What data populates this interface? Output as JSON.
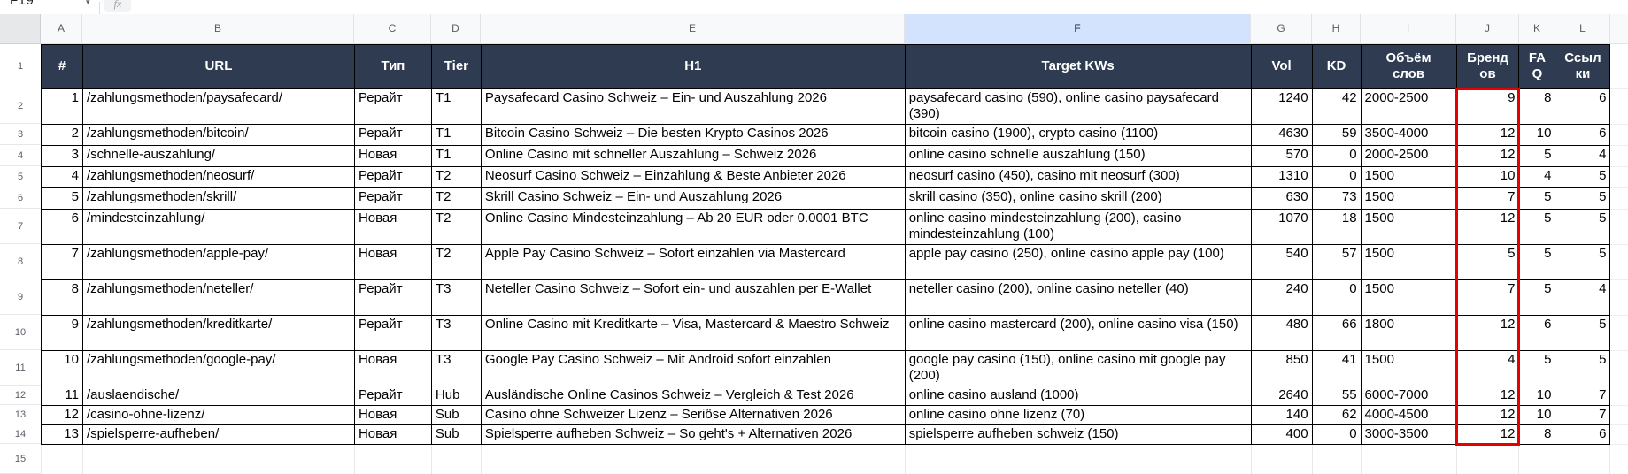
{
  "formula_bar": {
    "cell_reference": "F19",
    "fx_label": "fx"
  },
  "selected_column": "F",
  "column_letters": [
    "A",
    "B",
    "C",
    "D",
    "E",
    "F",
    "G",
    "H",
    "I",
    "J",
    "K",
    "L"
  ],
  "row_numbers": [
    "1",
    "2",
    "3",
    "4",
    "5",
    "6",
    "7",
    "8",
    "9",
    "10",
    "11",
    "12",
    "13",
    "14",
    "15"
  ],
  "table": {
    "headers": [
      "#",
      "URL",
      "Тип",
      "Tier",
      "H1",
      "Target KWs",
      "Vol",
      "KD",
      "Объём слов",
      "Брендов",
      "FAQ",
      "Ссылки"
    ],
    "rows": [
      [
        "1",
        "/zahlungsmethoden/paysafecard/",
        "Рерайт",
        "T1",
        "Paysafecard Casino Schweiz – Ein- und Auszahlung 2026",
        "paysafecard casino (590), online casino paysafecard (390)",
        "1240",
        "42",
        "2000-2500",
        "9",
        "8",
        "6"
      ],
      [
        "2",
        "/zahlungsmethoden/bitcoin/",
        "Рерайт",
        "T1",
        "Bitcoin Casino Schweiz – Die besten Krypto Casinos 2026",
        "bitcoin casino (1900), crypto casino (1100)",
        "4630",
        "59",
        "3500-4000",
        "12",
        "10",
        "6"
      ],
      [
        "3",
        "/schnelle-auszahlung/",
        "Новая",
        "T1",
        "Online Casino mit schneller Auszahlung – Schweiz 2026",
        "online casino schnelle auszahlung (150)",
        "570",
        "0",
        "2000-2500",
        "12",
        "5",
        "4"
      ],
      [
        "4",
        "/zahlungsmethoden/neosurf/",
        "Рерайт",
        "T2",
        "Neosurf Casino Schweiz – Einzahlung & Beste Anbieter 2026",
        "neosurf casino (450), casino mit neosurf (300)",
        "1310",
        "0",
        "1500",
        "10",
        "4",
        "5"
      ],
      [
        "5",
        "/zahlungsmethoden/skrill/",
        "Рерайт",
        "T2",
        "Skrill Casino Schweiz – Ein- und Auszahlung 2026",
        "skrill casino (350), online casino skrill (200)",
        "630",
        "73",
        "1500",
        "7",
        "5",
        "5"
      ],
      [
        "6",
        "/mindesteinzahlung/",
        "Новая",
        "T2",
        "Online Casino Mindesteinzahlung – Ab 20 EUR oder 0.0001 BTC",
        "online casino mindesteinzahlung (200), casino mindesteinzahlung (100)",
        "1070",
        "18",
        "1500",
        "12",
        "5",
        "5"
      ],
      [
        "7",
        "/zahlungsmethoden/apple-pay/",
        "Новая",
        "T2",
        "Apple Pay Casino Schweiz – Sofort einzahlen via Mastercard",
        "apple pay casino (250), online casino apple pay (100)",
        "540",
        "57",
        "1500",
        "5",
        "5",
        "5"
      ],
      [
        "8",
        "/zahlungsmethoden/neteller/",
        "Рерайт",
        "T3",
        "Neteller Casino Schweiz – Sofort ein- und auszahlen per E-Wallet",
        "neteller casino (200), online casino neteller (40)",
        "240",
        "0",
        "1500",
        "7",
        "5",
        "4"
      ],
      [
        "9",
        "/zahlungsmethoden/kreditkarte/",
        "Рерайт",
        "T3",
        "Online Casino mit Kreditkarte – Visa, Mastercard & Maestro Schweiz",
        "online casino mastercard (200), online casino visa (150)",
        "480",
        "66",
        "1800",
        "12",
        "6",
        "5"
      ],
      [
        "10",
        "/zahlungsmethoden/google-pay/",
        "Новая",
        "T3",
        "Google Pay Casino Schweiz – Mit Android sofort einzahlen",
        "google pay casino (150), online casino mit google pay (200)",
        "850",
        "41",
        "1500",
        "4",
        "5",
        "5"
      ],
      [
        "11",
        "/auslaendische/",
        "Рерайт",
        "Hub",
        "Ausländische Online Casinos Schweiz – Vergleich & Test 2026",
        "online casino ausland (1000)",
        "2640",
        "55",
        "6000-7000",
        "12",
        "10",
        "7"
      ],
      [
        "12",
        "/casino-ohne-lizenz/",
        "Новая",
        "Sub",
        "Casino ohne Schweizer Lizenz – Seriöse Alternativen 2026",
        "online casino ohne lizenz (70)",
        "140",
        "62",
        "4000-4500",
        "12",
        "10",
        "7"
      ],
      [
        "13",
        "/spielsperre-aufheben/",
        "Новая",
        "Sub",
        "Spielsperre aufheben Schweiz – So geht's + Alternativen 2026",
        "spielsperre aufheben schweiz (150)",
        "400",
        "0",
        "3000-3500",
        "12",
        "8",
        "6"
      ]
    ]
  },
  "highlight": {
    "color": "#e60000",
    "column": "Брендов",
    "rows": "2-14"
  }
}
